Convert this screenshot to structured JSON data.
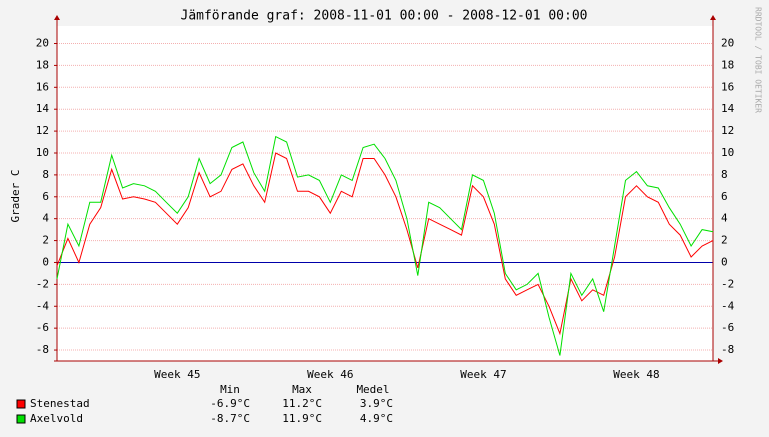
{
  "chart_data": {
    "type": "line",
    "title": "Jämförande graf: 2008-11-01 00:00 - 2008-12-01 00:00",
    "y_label": "Grader C",
    "watermark": "RRDTOOL / TOBI OETIKER",
    "x": [
      0,
      0.5,
      1,
      1.5,
      2,
      2.5,
      3,
      3.5,
      4,
      4.5,
      5,
      5.5,
      6,
      6.5,
      7,
      7.5,
      8,
      8.5,
      9,
      9.5,
      10,
      10.5,
      11,
      11.5,
      12,
      12.5,
      13,
      13.5,
      14,
      14.5,
      15,
      15.5,
      16,
      16.5,
      17,
      17.5,
      18,
      18.5,
      19,
      19.5,
      20,
      20.5,
      21,
      21.5,
      22,
      22.5,
      23,
      23.5,
      24,
      24.5,
      25,
      25.5,
      26,
      26.5,
      27,
      27.5,
      28,
      28.5,
      29,
      29.5,
      30
    ],
    "xlim": [
      0,
      30
    ],
    "xticks": [
      {
        "value": 5.5,
        "label": "Week 45"
      },
      {
        "value": 12.5,
        "label": "Week 46"
      },
      {
        "value": 19.5,
        "label": "Week 47"
      },
      {
        "value": 26.5,
        "label": "Week 48"
      }
    ],
    "ylim": [
      -9,
      21.6
    ],
    "yticks": [
      -8,
      -6,
      -4,
      -2,
      0,
      2,
      4,
      6,
      8,
      10,
      12,
      14,
      16,
      18,
      20
    ],
    "grid": true,
    "zero_line_color": "#0000aa",
    "series": [
      {
        "name": "Stenestad",
        "color": "#ff0000",
        "values": [
          -0.3,
          2.2,
          0.0,
          3.5,
          5.0,
          8.5,
          5.8,
          6.0,
          5.8,
          5.5,
          4.5,
          3.5,
          5.0,
          8.2,
          6.0,
          6.5,
          8.5,
          9.0,
          7.0,
          5.5,
          10.0,
          9.5,
          6.5,
          6.5,
          6.0,
          4.5,
          6.5,
          6.0,
          9.5,
          9.5,
          8.0,
          6.0,
          3.0,
          -0.5,
          4.0,
          3.5,
          3.0,
          2.5,
          7.0,
          6.0,
          3.5,
          -1.5,
          -3.0,
          -2.5,
          -2.0,
          -4.0,
          -6.5,
          -1.5,
          -3.5,
          -2.5,
          -3.0,
          0.5,
          6.0,
          7.0,
          6.0,
          5.5,
          3.5,
          2.5,
          0.5,
          1.5,
          2.0
        ],
        "stats": [
          "-6.9°C",
          "11.2°C",
          "3.9°C"
        ]
      },
      {
        "name": "Axelvold",
        "color": "#00e000",
        "values": [
          -1.5,
          3.5,
          1.5,
          5.5,
          5.5,
          9.8,
          6.8,
          7.2,
          7.0,
          6.5,
          5.5,
          4.5,
          6.0,
          9.5,
          7.2,
          8.0,
          10.5,
          11.0,
          8.2,
          6.5,
          11.5,
          11.0,
          7.8,
          8.0,
          7.5,
          5.5,
          8.0,
          7.5,
          10.5,
          10.8,
          9.5,
          7.5,
          4.0,
          -1.2,
          5.5,
          5.0,
          4.0,
          3.0,
          8.0,
          7.5,
          4.5,
          -1.0,
          -2.5,
          -2.0,
          -1.0,
          -5.0,
          -8.5,
          -1.0,
          -3.0,
          -1.5,
          -4.5,
          1.5,
          7.5,
          8.3,
          7.0,
          6.8,
          5.0,
          3.5,
          1.5,
          3.0,
          2.8
        ],
        "stats": [
          "-8.7°C",
          "11.9°C",
          "4.9°C"
        ]
      }
    ],
    "stats_headers": [
      "Min",
      "Max",
      "Medel"
    ]
  }
}
